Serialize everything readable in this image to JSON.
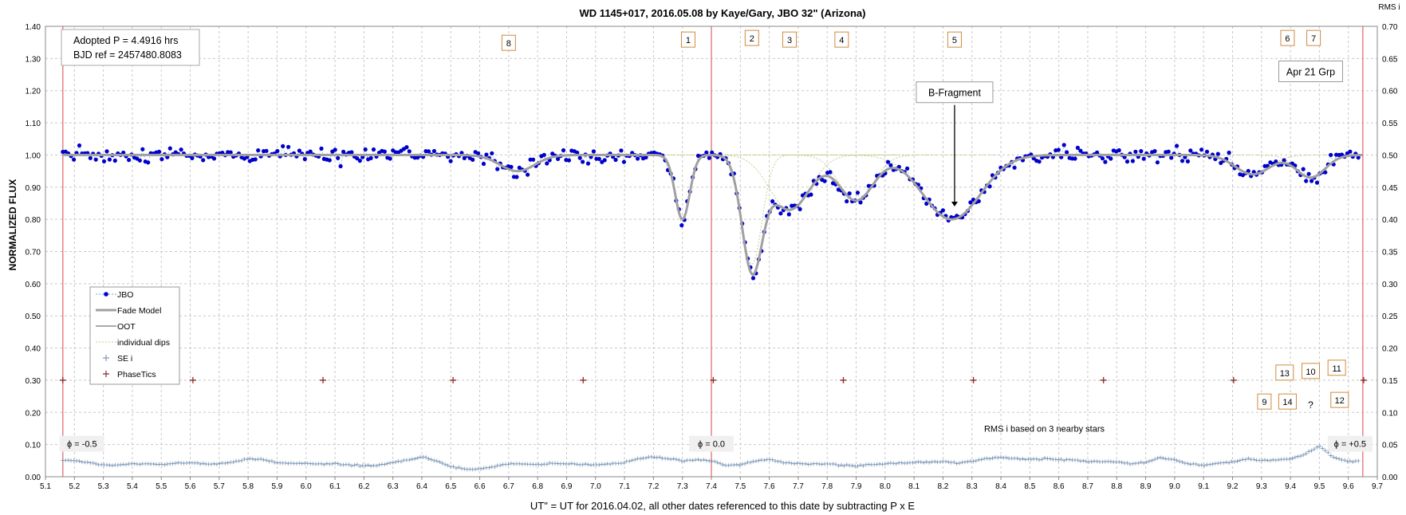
{
  "chart_data": {
    "type": "scatter",
    "title": "WD 1145+017,  2016.05.08  by Kaye/Gary, JBO 32\" (Arizona)",
    "xlabel": "UT\" = UT for 2016.04.02, all other dates referenced to this date by subtracting P x E",
    "ylabel": "NORMALIZED FLUX",
    "y2label": "RMS i",
    "xlim": [
      5.1,
      9.7
    ],
    "ylim": [
      0.0,
      1.4
    ],
    "y2lim": [
      0.0,
      0.7
    ],
    "x_ticks": [
      "5.1",
      "5.2",
      "5.3",
      "5.4",
      "5.5",
      "5.6",
      "5.7",
      "5.8",
      "5.9",
      "6.0",
      "6.1",
      "6.2",
      "6.3",
      "6.4",
      "6.5",
      "6.6",
      "6.7",
      "6.8",
      "6.9",
      "7.0",
      "7.1",
      "7.2",
      "7.3",
      "7.4",
      "7.5",
      "7.6",
      "7.7",
      "7.8",
      "7.9",
      "8.0",
      "8.1",
      "8.2",
      "8.3",
      "8.4",
      "8.5",
      "8.6",
      "8.7",
      "8.8",
      "8.9",
      "9.0",
      "9.1",
      "9.2",
      "9.3",
      "9.4",
      "9.5",
      "9.6",
      "9.7"
    ],
    "y_ticks": [
      "0.00",
      "0.10",
      "0.20",
      "0.30",
      "0.40",
      "0.50",
      "0.60",
      "0.70",
      "0.80",
      "0.90",
      "1.00",
      "1.10",
      "1.20",
      "1.30",
      "1.40"
    ],
    "y2_ticks": [
      "0.00",
      "0.05",
      "0.10",
      "0.15",
      "0.20",
      "0.25",
      "0.30",
      "0.35",
      "0.40",
      "0.45",
      "0.50",
      "0.55",
      "0.60",
      "0.65",
      "0.70"
    ],
    "grid": true,
    "legend_position": "left-middle",
    "legend": [
      {
        "label": "JBO",
        "kind": "dots",
        "color": "#0000cc"
      },
      {
        "label": "Fade Model",
        "kind": "thick-line",
        "color": "#a0a0a0"
      },
      {
        "label": "OOT",
        "kind": "line",
        "color": "#555555"
      },
      {
        "label": "individual dips",
        "kind": "dashed",
        "color": "#c8cc88"
      },
      {
        "label": "SE i",
        "kind": "plus",
        "color": "#7f9ab8"
      },
      {
        "label": "PhaseTics",
        "kind": "plus",
        "color": "#8b2a2a"
      }
    ],
    "info_box": [
      "Adopted P = 4.4916 hrs",
      "BJD ref = 2457480.8083"
    ],
    "model": {
      "baseline": 1.0,
      "dips": [
        {
          "center": 6.73,
          "depth": 0.05,
          "width": 0.06
        },
        {
          "center": 7.3,
          "depth": 0.2,
          "width": 0.025
        },
        {
          "center": 7.54,
          "depth": 0.34,
          "width": 0.035
        },
        {
          "center": 7.67,
          "depth": 0.17,
          "width": 0.07
        },
        {
          "center": 7.9,
          "depth": 0.14,
          "width": 0.06
        },
        {
          "center": 8.23,
          "depth": 0.2,
          "width": 0.1
        },
        {
          "center": 9.27,
          "depth": 0.06,
          "width": 0.06
        },
        {
          "center": 9.47,
          "depth": 0.07,
          "width": 0.05
        }
      ]
    },
    "phase_tics": {
      "start": 5.16,
      "step": 0.4493,
      "count": 11,
      "value": 0.3
    },
    "phase_lines": {
      "positions": [
        5.16,
        7.4,
        9.65
      ],
      "labels": [
        "ϕ = -0.5",
        "ϕ = 0.0",
        "ϕ = +0.5"
      ]
    },
    "dip_labels": [
      {
        "text": "8",
        "x": 6.7,
        "y": 1.35
      },
      {
        "text": "1",
        "x": 7.32,
        "y": 1.36
      },
      {
        "text": "2",
        "x": 7.54,
        "y": 1.365
      },
      {
        "text": "3",
        "x": 7.67,
        "y": 1.36
      },
      {
        "text": "4",
        "x": 7.85,
        "y": 1.36
      },
      {
        "text": "5",
        "x": 8.24,
        "y": 1.36
      },
      {
        "text": "6",
        "x": 9.39,
        "y": 1.365
      },
      {
        "text": "7",
        "x": 9.48,
        "y": 1.365
      },
      {
        "text": "13",
        "x": 9.38,
        "y": 0.325
      },
      {
        "text": "10",
        "x": 9.47,
        "y": 0.33
      },
      {
        "text": "11",
        "x": 9.56,
        "y": 0.34
      },
      {
        "text": "9",
        "x": 9.31,
        "y": 0.235
      },
      {
        "text": "14",
        "x": 9.39,
        "y": 0.235
      },
      {
        "text": "12",
        "x": 9.57,
        "y": 0.24
      }
    ],
    "question_mark": {
      "text": "?",
      "x": 9.47,
      "y": 0.225
    },
    "annotations": {
      "b_fragment": {
        "text": "B-Fragment",
        "x": 8.24,
        "y": 1.195,
        "arrow_to": 0.84
      },
      "apr21": {
        "text": "Apr 21 Grp",
        "x": 9.47,
        "y": 1.26
      },
      "rms_note": {
        "text": "RMS i based on 3 nearby stars",
        "x": 8.55,
        "y": 0.15
      }
    },
    "rms_series": {
      "x": [
        5.15,
        5.2,
        5.25,
        5.3,
        5.35,
        5.4,
        5.45,
        5.5,
        5.55,
        5.6,
        5.65,
        5.7,
        5.75,
        5.8,
        5.85,
        5.9,
        5.95,
        6.0,
        6.05,
        6.1,
        6.15,
        6.2,
        6.25,
        6.3,
        6.35,
        6.4,
        6.45,
        6.5,
        6.55,
        6.6,
        6.65,
        6.7,
        6.75,
        6.8,
        6.85,
        6.9,
        6.95,
        7.0,
        7.05,
        7.1,
        7.15,
        7.2,
        7.25,
        7.3,
        7.35,
        7.4,
        7.45,
        7.5,
        7.55,
        7.6,
        7.65,
        7.7,
        7.75,
        7.8,
        7.85,
        7.9,
        7.95,
        8.0,
        8.05,
        8.1,
        8.15,
        8.2,
        8.25,
        8.3,
        8.35,
        8.4,
        8.45,
        8.5,
        8.55,
        8.6,
        8.65,
        8.7,
        8.75,
        8.8,
        8.85,
        8.9,
        8.95,
        9.0,
        9.05,
        9.1,
        9.15,
        9.2,
        9.25,
        9.3,
        9.35,
        9.4,
        9.45,
        9.5,
        9.55,
        9.6,
        9.65
      ],
      "y": [
        0.026,
        0.025,
        0.022,
        0.018,
        0.018,
        0.02,
        0.02,
        0.019,
        0.021,
        0.022,
        0.02,
        0.02,
        0.023,
        0.028,
        0.027,
        0.022,
        0.021,
        0.021,
        0.02,
        0.02,
        0.018,
        0.017,
        0.018,
        0.022,
        0.026,
        0.031,
        0.025,
        0.016,
        0.012,
        0.012,
        0.016,
        0.02,
        0.02,
        0.019,
        0.021,
        0.02,
        0.019,
        0.019,
        0.02,
        0.022,
        0.028,
        0.031,
        0.028,
        0.025,
        0.026,
        0.025,
        0.017,
        0.019,
        0.024,
        0.027,
        0.022,
        0.02,
        0.02,
        0.02,
        0.018,
        0.017,
        0.019,
        0.02,
        0.021,
        0.022,
        0.023,
        0.024,
        0.021,
        0.024,
        0.028,
        0.03,
        0.028,
        0.027,
        0.028,
        0.027,
        0.026,
        0.024,
        0.024,
        0.023,
        0.02,
        0.022,
        0.03,
        0.026,
        0.02,
        0.018,
        0.021,
        0.023,
        0.028,
        0.025,
        0.026,
        0.028,
        0.035,
        0.048,
        0.03,
        0.024,
        0.025
      ]
    },
    "series_seed": 1145017
  }
}
